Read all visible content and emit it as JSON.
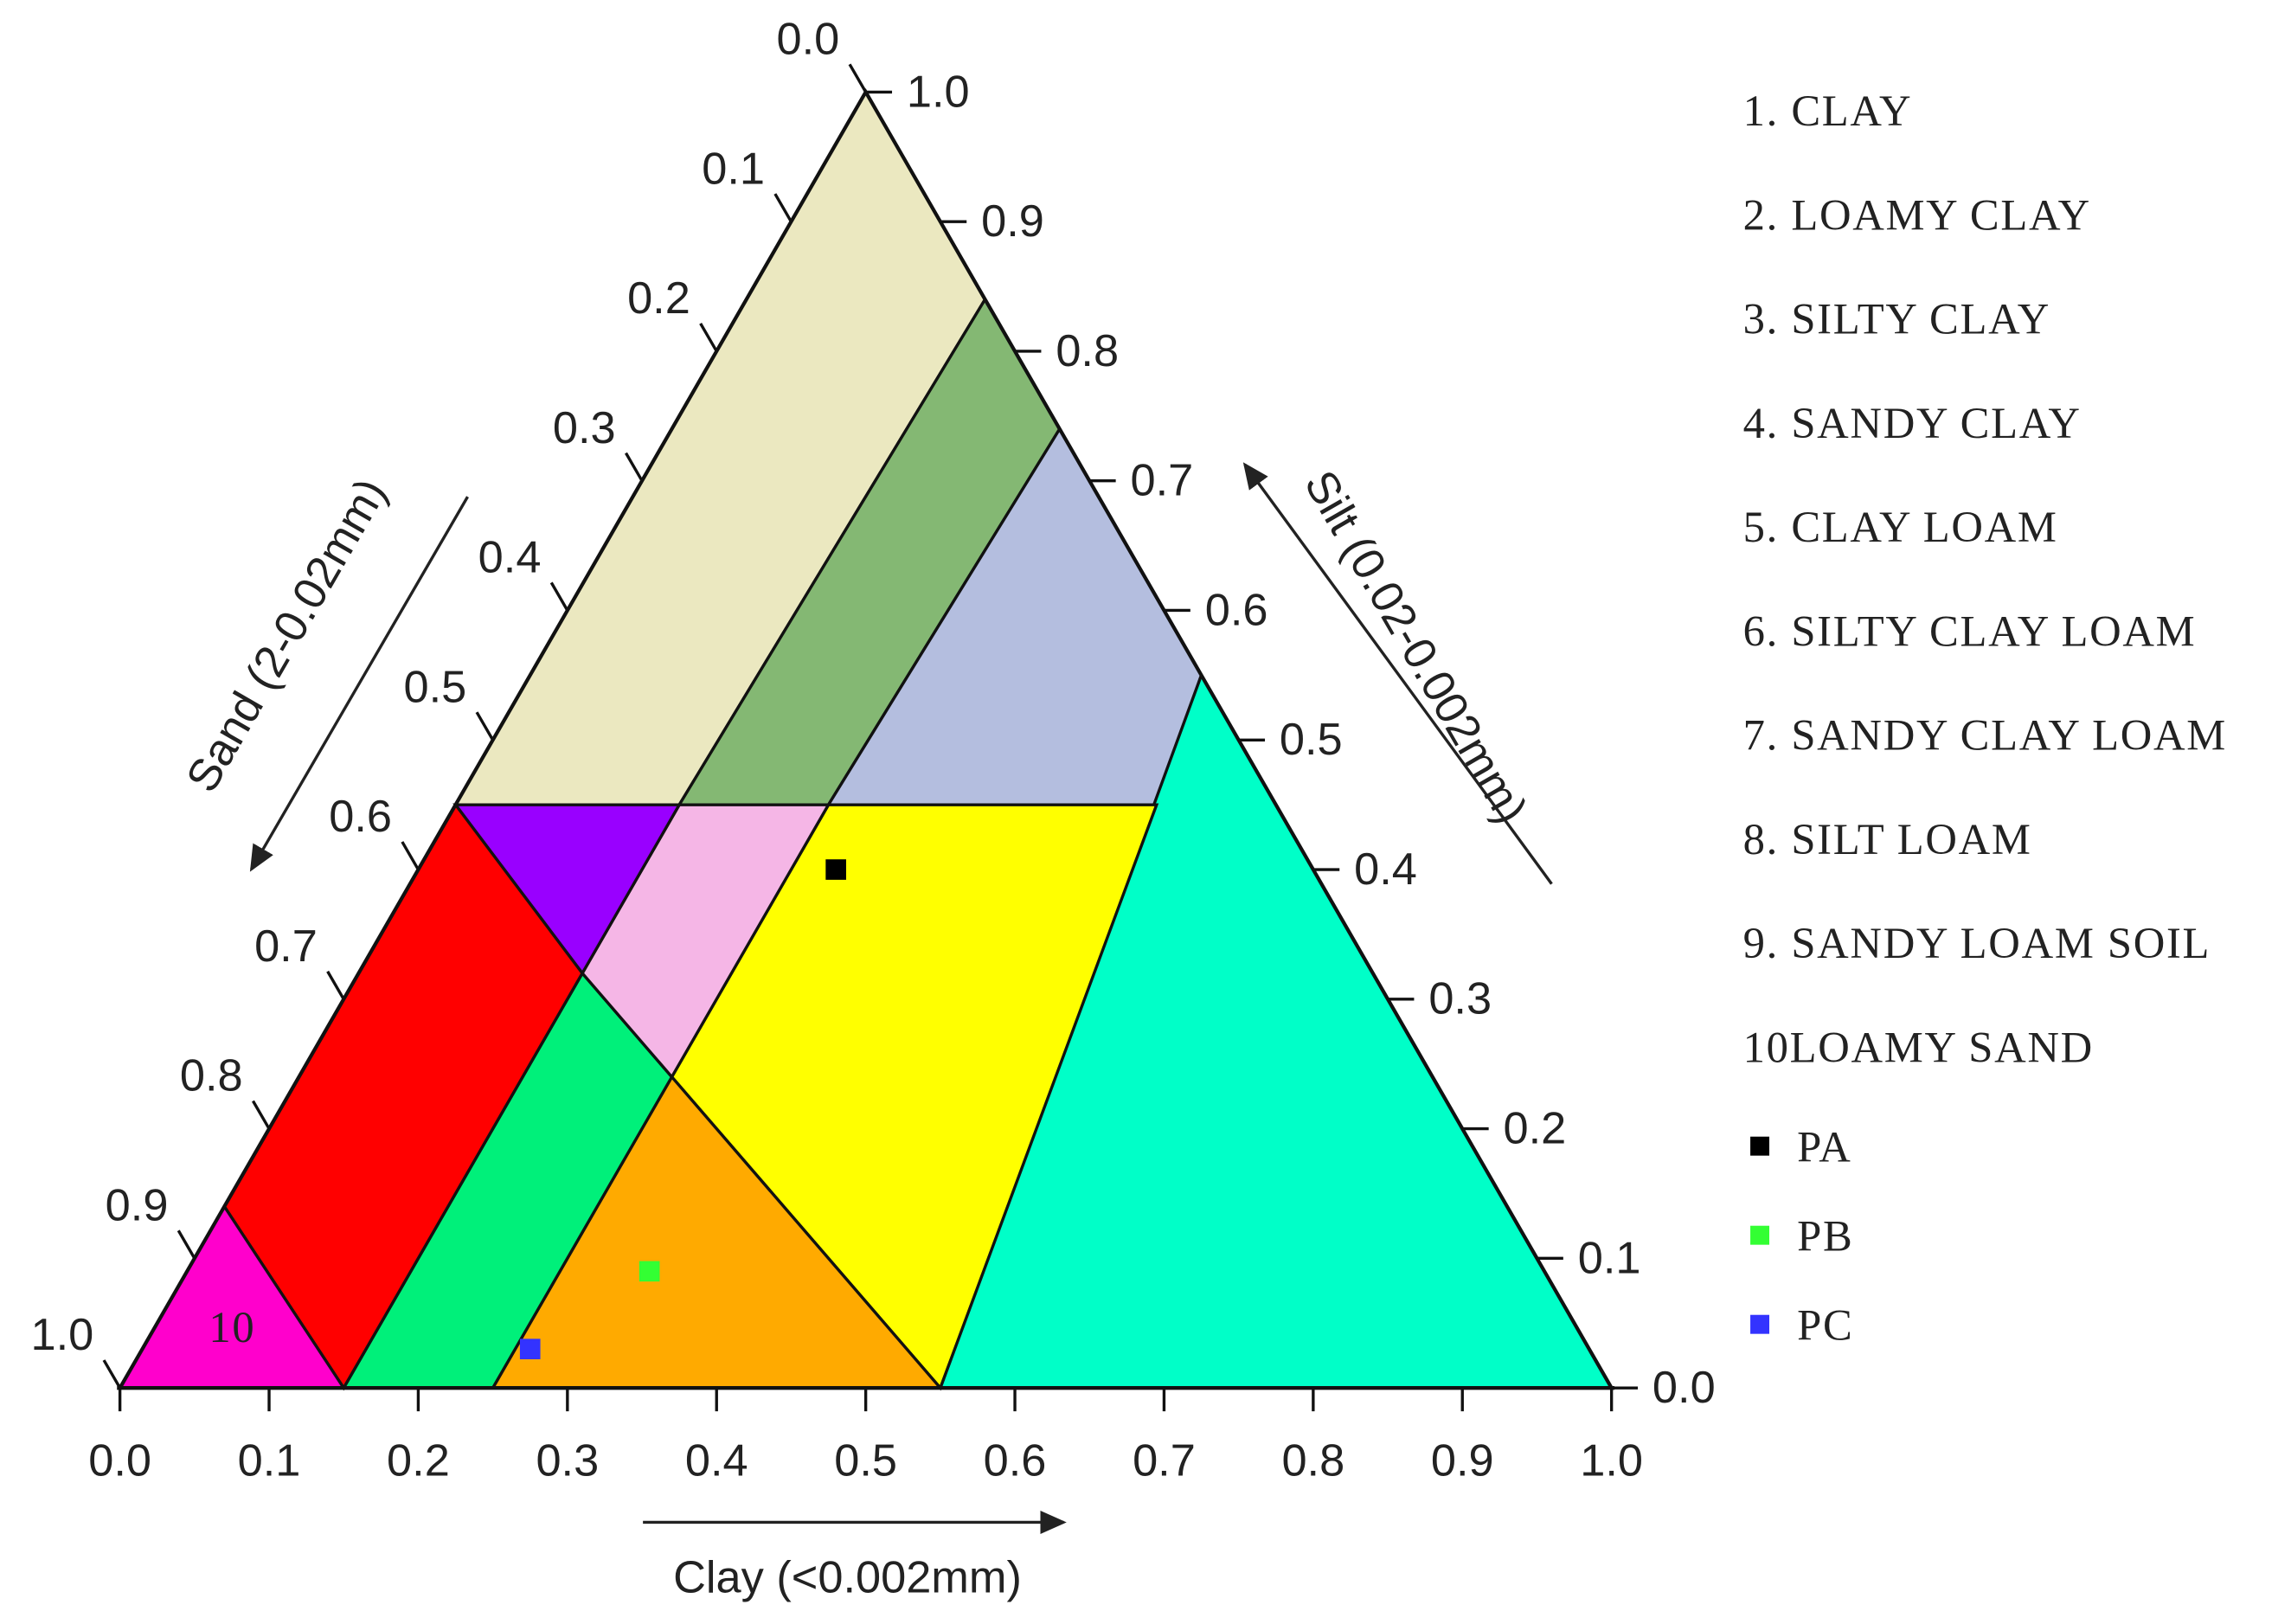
{
  "chart_data": {
    "type": "ternary",
    "clay_axis": {
      "title": "Clay (<0.002mm)",
      "lim": [
        0,
        1
      ],
      "ticks": [
        {
          "value": 0,
          "label": "0.0"
        },
        0.1,
        0.2,
        0.3,
        0.4,
        0.5,
        0.6,
        0.7,
        0.8,
        0.9,
        {
          "value": 1,
          "label": "1.0"
        }
      ]
    },
    "silt_axis": {
      "title": "Silt (0.02-0.002mm)",
      "lim": [
        0,
        1
      ],
      "ticks": [
        {
          "value": 0,
          "label": "0.0"
        },
        0.1,
        0.2,
        0.3,
        0.4,
        0.5,
        0.6,
        0.7,
        0.8,
        0.9,
        {
          "value": 1,
          "label": "1.0"
        }
      ]
    },
    "sand_axis": {
      "title": "Sand (2-0.02mm)",
      "lim": [
        0,
        1
      ],
      "ticks": [
        {
          "value": 0,
          "label": "0.0"
        },
        0.1,
        0.2,
        0.3,
        0.4,
        0.5,
        0.6,
        0.7,
        0.8,
        0.9,
        {
          "value": 1,
          "label": "1.0"
        }
      ]
    },
    "regions": [
      {
        "color": "#ebe8c0",
        "points": [
          [
            0,
            1
          ],
          [
            0,
            0.45
          ],
          [
            0.15,
            0.45
          ],
          [
            0.16,
            0.84
          ]
        ]
      },
      {
        "color": "#84b873",
        "points": [
          [
            0.15,
            0.45
          ],
          [
            0.16,
            0.84
          ],
          [
            0.26,
            0.74
          ],
          [
            0.25,
            0.45
          ]
        ]
      },
      {
        "color": "#b4bedf",
        "points": [
          [
            0.25,
            0.45
          ],
          [
            0.26,
            0.74
          ],
          [
            0.45,
            0.55
          ],
          [
            0.47,
            0.45
          ]
        ]
      },
      {
        "color": "#00ffc8",
        "points": [
          [
            0.45,
            0.55
          ],
          [
            0.55,
            0
          ],
          [
            1,
            0
          ]
        ]
      },
      {
        "color": "#ffff00",
        "points": [
          [
            0.25,
            0.45
          ],
          [
            0.47,
            0.45
          ],
          [
            0.55,
            0
          ],
          [
            0.25,
            0.24
          ]
        ]
      },
      {
        "color": "#ffaa00",
        "points": [
          [
            0.25,
            0.24
          ],
          [
            0.55,
            0
          ],
          [
            0.25,
            0
          ]
        ]
      },
      {
        "color": "#00f07a",
        "points": [
          [
            0.15,
            0.32
          ],
          [
            0.25,
            0.24
          ],
          [
            0.25,
            0
          ],
          [
            0.15,
            0
          ]
        ]
      },
      {
        "color": "#f5b6e6",
        "points": [
          [
            0.15,
            0.45
          ],
          [
            0.25,
            0.45
          ],
          [
            0.25,
            0.24
          ],
          [
            0.15,
            0.32
          ]
        ]
      },
      {
        "color": "#9900ff",
        "points": [
          [
            0,
            0.45
          ],
          [
            0.15,
            0.45
          ],
          [
            0.15,
            0.32
          ]
        ]
      },
      {
        "color": "#ff0000",
        "points": [
          [
            0,
            0.45
          ],
          [
            0.15,
            0.32
          ],
          [
            0.15,
            0
          ],
          [
            0,
            0.14
          ]
        ]
      },
      {
        "color": "#ff00cc",
        "label": "10",
        "points": [
          [
            0,
            0.14
          ],
          [
            0.15,
            0
          ],
          [
            0,
            0
          ]
        ]
      }
    ],
    "classes": [
      "1. CLAY",
      "2. LOAMY CLAY",
      "3. SILTY CLAY",
      "4. SANDY CLAY",
      "5. CLAY LOAM",
      "6. SILTY CLAY LOAM",
      "7. SANDY CLAY LOAM",
      "8. SILT LOAM",
      "9. SANDY LOAM SOIL",
      "10LOAMY SAND"
    ],
    "series": [
      {
        "name": "PA",
        "color": "#000000",
        "clay": 0.28,
        "silt": 0.4
      },
      {
        "name": "PB",
        "color": "#33ff33",
        "clay": 0.31,
        "silt": 0.09
      },
      {
        "name": "PC",
        "color": "#3333ff",
        "clay": 0.26,
        "silt": 0.03
      }
    ]
  }
}
